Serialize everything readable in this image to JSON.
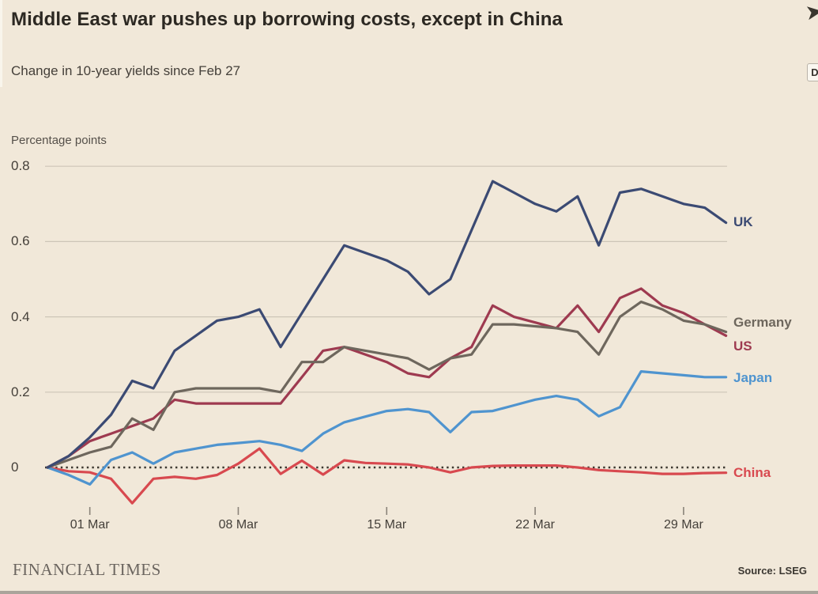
{
  "header": {
    "title": "Middle East war pushes up borrowing costs, except in China",
    "subtitle": "Change in 10-year yields since Feb 27"
  },
  "overlay_icons": {
    "expand_arrow_glyph": "➤",
    "d_badge_letter": "D"
  },
  "chart_data": {
    "type": "line",
    "title": "Middle East war pushes up borrowing costs, except in China",
    "subtitle": "Change in 10-year yields since Feb 27",
    "ylabel": "Percentage points",
    "ylim": [
      -0.12,
      0.85
    ],
    "grid": "horizontal",
    "legend_position": "right-end-labels",
    "zero_line_style": "dotted",
    "yticks": [
      0,
      0.2,
      0.4,
      0.6,
      0.8
    ],
    "ytick_labels": [
      "0",
      "0.2",
      "0.4",
      "0.6",
      "0.8"
    ],
    "xtick_labels": [
      "01 Mar",
      "08 Mar",
      "15 Mar",
      "22 Mar",
      "29 Mar"
    ],
    "xtick_day_index": [
      2,
      9,
      16,
      23,
      30
    ],
    "dates": [
      "27 Feb",
      "28 Feb",
      "1 Mar",
      "2 Mar",
      "3 Mar",
      "4 Mar",
      "5 Mar",
      "6 Mar",
      "7 Mar",
      "8 Mar",
      "9 Mar",
      "10 Mar",
      "11 Mar",
      "12 Mar",
      "13 Mar",
      "14 Mar",
      "15 Mar",
      "16 Mar",
      "17 Mar",
      "18 Mar",
      "19 Mar",
      "20 Mar",
      "21 Mar",
      "22 Mar",
      "23 Mar",
      "24 Mar",
      "25 Mar",
      "26 Mar",
      "27 Mar",
      "28 Mar",
      "29 Mar",
      "30 Mar",
      "31 Mar"
    ],
    "series": [
      {
        "name": "China",
        "color": "#d8494f",
        "values": [
          0,
          -0.01,
          -0.013,
          -0.03,
          -0.095,
          -0.03,
          -0.025,
          -0.03,
          -0.02,
          0.01,
          0.05,
          -0.017,
          0.018,
          -0.019,
          0.019,
          0.012,
          0.01,
          0.008,
          0,
          -0.013,
          0,
          0.004,
          0.005,
          0.005,
          0.005,
          0,
          -0.007,
          -0.01,
          -0.013,
          -0.017,
          -0.017,
          -0.015,
          -0.014
        ]
      },
      {
        "name": "Japan",
        "color": "#4f94cf",
        "values": [
          0,
          -0.02,
          -0.045,
          0.02,
          0.04,
          0.01,
          0.04,
          0.05,
          0.06,
          0.065,
          0.07,
          0.06,
          0.044,
          0.09,
          0.12,
          0.135,
          0.15,
          0.155,
          0.147,
          0.094,
          0.147,
          0.15,
          0.165,
          0.18,
          0.19,
          0.18,
          0.136,
          0.16,
          0.255,
          0.25,
          0.245,
          0.24,
          0.24
        ]
      },
      {
        "name": "US",
        "color": "#9e3a50",
        "values": [
          0,
          0.03,
          0.07,
          0.09,
          0.11,
          0.13,
          0.18,
          0.17,
          0.17,
          0.17,
          0.17,
          0.17,
          0.24,
          0.31,
          0.32,
          0.3,
          0.28,
          0.25,
          0.24,
          0.29,
          0.32,
          0.43,
          0.4,
          0.385,
          0.37,
          0.43,
          0.36,
          0.45,
          0.475,
          0.43,
          0.41,
          0.38,
          0.35
        ]
      },
      {
        "name": "Germany",
        "color": "#6e675d",
        "values": [
          0,
          0.02,
          0.04,
          0.055,
          0.13,
          0.1,
          0.2,
          0.21,
          0.21,
          0.21,
          0.21,
          0.2,
          0.28,
          0.28,
          0.32,
          0.31,
          0.3,
          0.29,
          0.26,
          0.29,
          0.3,
          0.38,
          0.38,
          0.375,
          0.37,
          0.36,
          0.3,
          0.4,
          0.44,
          0.42,
          0.39,
          0.38,
          0.36
        ]
      },
      {
        "name": "UK",
        "color": "#3b4a73",
        "values": [
          0,
          0.03,
          0.08,
          0.14,
          0.23,
          0.21,
          0.31,
          0.35,
          0.39,
          0.4,
          0.42,
          0.32,
          0.41,
          0.5,
          0.59,
          0.57,
          0.55,
          0.52,
          0.46,
          0.5,
          0.63,
          0.76,
          0.73,
          0.7,
          0.68,
          0.72,
          0.59,
          0.73,
          0.74,
          0.72,
          0.7,
          0.69,
          0.65
        ]
      }
    ]
  },
  "end_labels": {
    "uk": "UK",
    "germany": "Germany",
    "us": "US",
    "japan": "Japan",
    "china": "China"
  },
  "footer": {
    "brand": "FINANCIAL TIMES",
    "source": "Source: LSEG"
  }
}
